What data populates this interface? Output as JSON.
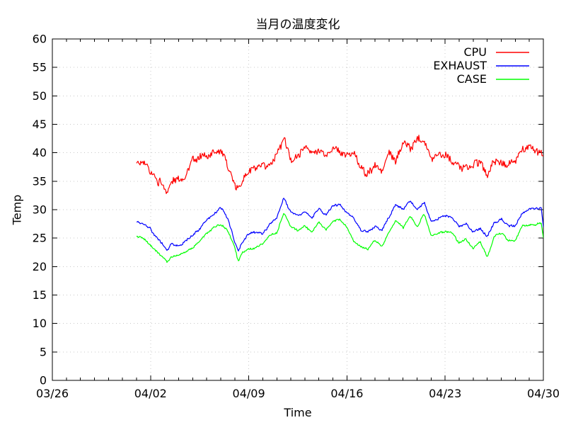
{
  "chart_data": {
    "type": "line",
    "title": "当月の温度変化",
    "xlabel": "Time",
    "ylabel": "Temp",
    "ylim": [
      0,
      60
    ],
    "y_tick_step": 5,
    "y_ticks": [
      0,
      5,
      10,
      15,
      20,
      25,
      30,
      35,
      40,
      45,
      50,
      55,
      60
    ],
    "x_total_days": 35,
    "x_minor_tick_interval_days": 1,
    "x_ticks": [
      {
        "label": "03/26",
        "day": 0
      },
      {
        "label": "04/02",
        "day": 7
      },
      {
        "label": "04/09",
        "day": 14
      },
      {
        "label": "04/16",
        "day": 21
      },
      {
        "label": "04/23",
        "day": 28
      },
      {
        "label": "04/30",
        "day": 35
      }
    ],
    "grid": true,
    "grid_color": "#c8c8c8",
    "border_color": "#000000",
    "legend_position": "top-right",
    "data_start_day_offset": 6,
    "x_days": [
      0,
      0.5,
      1,
      1.5,
      2,
      2.2,
      2.5,
      3,
      3.5,
      4,
      4.5,
      5,
      5.5,
      6,
      6.5,
      7,
      7.25,
      7.5,
      8,
      8.5,
      9,
      9.5,
      10,
      10.5,
      11,
      11.5,
      12,
      12.5,
      13,
      13.5,
      14,
      14.5,
      15,
      15.5,
      16,
      16.5,
      17,
      17.5,
      18,
      18.5,
      19,
      19.5,
      20,
      20.5,
      21,
      21.5,
      22,
      22.5,
      23,
      23.5,
      24,
      24.5,
      25,
      25.5,
      26,
      26.5,
      27,
      27.5,
      28,
      28.5,
      28.85,
      29
    ],
    "series": [
      {
        "name": "CPU",
        "color": "#ff0000",
        "noise_high": 0.55,
        "noise_low": 0.4,
        "values": [
          38.0,
          38.4,
          36.6,
          35.2,
          33.9,
          33.3,
          35.3,
          35.2,
          36.1,
          38.5,
          39.2,
          39.6,
          39.9,
          40.6,
          37.8,
          34.6,
          33.3,
          35.2,
          37.0,
          37.3,
          37.5,
          38.3,
          39.8,
          42.4,
          38.8,
          39.6,
          41.2,
          39.5,
          40.6,
          39.6,
          41.0,
          40.2,
          39.9,
          39.7,
          37.8,
          36.0,
          37.6,
          36.8,
          40.5,
          38.5,
          41.8,
          40.8,
          42.5,
          42.3,
          38.6,
          40.2,
          39.7,
          38.3,
          37.6,
          37.6,
          37.4,
          39.0,
          35.5,
          38.7,
          38.2,
          37.9,
          38.4,
          41.0,
          40.7,
          40.3,
          40.4,
          39.9
        ]
      },
      {
        "name": "EXHAUST",
        "color": "#0000ff",
        "noise_high": 0.17,
        "noise_low": 0.13,
        "values": [
          27.9,
          27.6,
          26.6,
          24.9,
          23.5,
          22.9,
          24.1,
          23.5,
          24.4,
          25.4,
          26.6,
          28.3,
          29.1,
          30.4,
          28.5,
          24.4,
          22.7,
          24.0,
          25.8,
          26.2,
          25.7,
          27.4,
          28.5,
          32.1,
          29.5,
          28.9,
          29.8,
          28.5,
          30.2,
          29.0,
          30.6,
          30.8,
          29.3,
          28.4,
          26.4,
          26.0,
          27.1,
          26.3,
          28.8,
          31.0,
          30.0,
          31.5,
          30.0,
          31.3,
          27.8,
          28.3,
          29.0,
          28.6,
          27.0,
          27.4,
          26.0,
          26.8,
          25.3,
          27.6,
          28.3,
          27.0,
          27.2,
          29.3,
          30.1,
          30.2,
          30.4,
          27.0
        ]
      },
      {
        "name": "CASE",
        "color": "#00ff00",
        "noise_high": 0.14,
        "noise_low": 0.11,
        "values": [
          25.2,
          25.0,
          23.7,
          22.4,
          21.3,
          20.7,
          21.8,
          21.9,
          22.6,
          23.3,
          24.4,
          25.8,
          26.8,
          27.5,
          26.3,
          23.3,
          21.0,
          22.3,
          23.0,
          23.3,
          24.0,
          25.5,
          25.9,
          29.3,
          27.0,
          26.3,
          27.2,
          26.0,
          27.8,
          26.5,
          28.1,
          28.2,
          27.0,
          24.3,
          23.6,
          23.0,
          24.6,
          23.6,
          26.0,
          28.2,
          26.8,
          29.0,
          27.0,
          29.2,
          25.4,
          25.8,
          26.2,
          26.0,
          24.1,
          24.8,
          23.2,
          24.3,
          21.6,
          25.3,
          25.8,
          24.7,
          24.6,
          27.2,
          27.3,
          27.4,
          27.6,
          24.9
        ]
      }
    ]
  }
}
